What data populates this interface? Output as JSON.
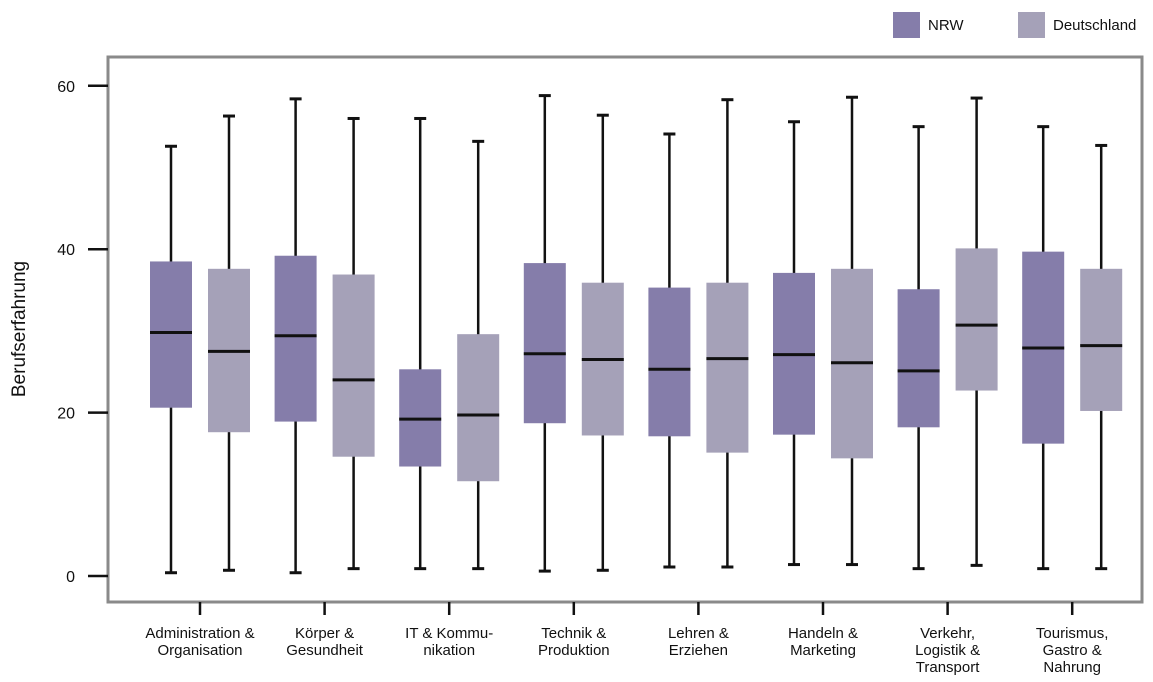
{
  "chart_data": {
    "type": "boxplot",
    "ylabel": "Berufserfahrung",
    "ylim": [
      -3,
      65
    ],
    "yticks": [
      "0",
      "20",
      "40",
      "60"
    ],
    "ytick_values": [
      0,
      20,
      40,
      60
    ],
    "grid": false,
    "legend_position": "top-right",
    "categories": [
      [
        "Administration &",
        "Organisation"
      ],
      [
        "Körper &",
        "Gesundheit"
      ],
      [
        "IT & Kommu-",
        "nikation"
      ],
      [
        "Technik &",
        "Produktion"
      ],
      [
        "Lehren &",
        "Erziehen"
      ],
      [
        "Handeln &",
        "Marketing"
      ],
      [
        "Verkehr,",
        "Logistik &",
        "Transport"
      ],
      [
        "Tourismus,",
        "Gastro &",
        "Nahrung"
      ]
    ],
    "series": [
      {
        "name": "NRW",
        "color": "#857daa",
        "boxes": [
          {
            "min": 0.4,
            "q1": 20.6,
            "median": 29.8,
            "q3": 38.5,
            "max": 52.6
          },
          {
            "min": 0.4,
            "q1": 18.9,
            "median": 29.4,
            "q3": 39.2,
            "max": 58.4
          },
          {
            "min": 0.9,
            "q1": 13.4,
            "median": 19.2,
            "q3": 25.3,
            "max": 56.0
          },
          {
            "min": 0.6,
            "q1": 18.7,
            "median": 27.2,
            "q3": 38.3,
            "max": 58.8
          },
          {
            "min": 1.1,
            "q1": 17.1,
            "median": 25.3,
            "q3": 35.3,
            "max": 54.1
          },
          {
            "min": 1.4,
            "q1": 17.3,
            "median": 27.1,
            "q3": 37.1,
            "max": 55.6
          },
          {
            "min": 0.9,
            "q1": 18.2,
            "median": 25.1,
            "q3": 35.1,
            "max": 55.0
          },
          {
            "min": 0.9,
            "q1": 16.2,
            "median": 27.9,
            "q3": 39.7,
            "max": 55.0
          }
        ]
      },
      {
        "name": "Deutschland",
        "color": "#a5a1b8",
        "boxes": [
          {
            "min": 0.7,
            "q1": 17.6,
            "median": 27.5,
            "q3": 37.6,
            "max": 56.3
          },
          {
            "min": 0.9,
            "q1": 14.6,
            "median": 24.0,
            "q3": 36.9,
            "max": 56.0
          },
          {
            "min": 0.9,
            "q1": 11.6,
            "median": 19.7,
            "q3": 29.6,
            "max": 53.2
          },
          {
            "min": 0.7,
            "q1": 17.2,
            "median": 26.5,
            "q3": 35.9,
            "max": 56.4
          },
          {
            "min": 1.1,
            "q1": 15.1,
            "median": 26.6,
            "q3": 35.9,
            "max": 58.3
          },
          {
            "min": 1.4,
            "q1": 14.4,
            "median": 26.1,
            "q3": 37.6,
            "max": 58.6
          },
          {
            "min": 1.3,
            "q1": 22.7,
            "median": 30.7,
            "q3": 40.1,
            "max": 58.5
          },
          {
            "min": 0.9,
            "q1": 20.2,
            "median": 28.2,
            "q3": 37.6,
            "max": 52.7
          }
        ]
      }
    ]
  }
}
